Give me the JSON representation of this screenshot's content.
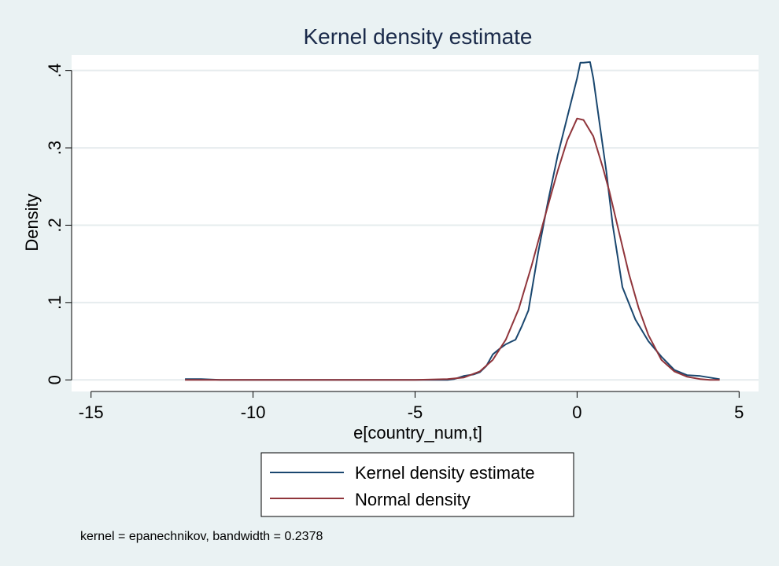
{
  "chart_data": {
    "type": "line",
    "title": "Kernel density estimate",
    "xlabel": "e[country_num,t]",
    "ylabel": "Density",
    "xlim": [
      -15.6,
      5.6
    ],
    "ylim": [
      -0.015,
      0.42
    ],
    "xticks": [
      -15,
      -10,
      -5,
      0,
      5
    ],
    "xtick_labels": [
      "-15",
      "-10",
      "-5",
      "0",
      "5"
    ],
    "yticks": [
      0,
      0.1,
      0.2,
      0.3,
      0.4
    ],
    "ytick_labels": [
      "0",
      ".1",
      ".2",
      ".3",
      ".4"
    ],
    "grid": true,
    "legend_position": "bottom",
    "series": [
      {
        "name": "Kernel density estimate",
        "color": "#1a476f",
        "x": [
          -12.1,
          -11.6,
          -11.0,
          -10.0,
          -8.0,
          -6.0,
          -5.0,
          -4.0,
          -3.8,
          -3.5,
          -3.2,
          -3.0,
          -2.8,
          -2.6,
          -2.4,
          -2.2,
          -2.0,
          -1.9,
          -1.7,
          -1.5,
          -1.2,
          -0.9,
          -0.6,
          -0.3,
          0.0,
          0.1,
          0.2,
          0.4,
          0.5,
          0.7,
          0.9,
          1.1,
          1.4,
          1.8,
          2.2,
          2.6,
          3.0,
          3.4,
          3.8,
          4.1,
          4.4
        ],
        "y": [
          0.001,
          0.001,
          0.0,
          0.0,
          0.0,
          0.0,
          0.0,
          0.0,
          0.001,
          0.005,
          0.007,
          0.01,
          0.018,
          0.033,
          0.04,
          0.046,
          0.05,
          0.052,
          0.07,
          0.09,
          0.165,
          0.23,
          0.29,
          0.34,
          0.39,
          0.41,
          0.41,
          0.411,
          0.39,
          0.33,
          0.27,
          0.2,
          0.12,
          0.078,
          0.05,
          0.03,
          0.013,
          0.006,
          0.005,
          0.003,
          0.001
        ]
      },
      {
        "name": "Normal density",
        "color": "#90353b",
        "x": [
          -12.1,
          -11.0,
          -10.0,
          -8.0,
          -6.0,
          -5.0,
          -4.0,
          -3.5,
          -3.0,
          -2.6,
          -2.2,
          -1.8,
          -1.4,
          -1.0,
          -0.6,
          -0.3,
          0.0,
          0.2,
          0.5,
          0.8,
          1.0,
          1.3,
          1.6,
          1.9,
          2.2,
          2.6,
          3.0,
          3.4,
          3.8,
          4.1,
          4.4
        ],
        "y": [
          0.0,
          0.0,
          0.0,
          0.0,
          0.0,
          0.0,
          0.001,
          0.003,
          0.011,
          0.026,
          0.052,
          0.092,
          0.148,
          0.21,
          0.27,
          0.31,
          0.338,
          0.336,
          0.315,
          0.274,
          0.243,
          0.19,
          0.137,
          0.093,
          0.058,
          0.026,
          0.011,
          0.004,
          0.001,
          0.0,
          0.0
        ]
      }
    ]
  },
  "note": "kernel = epanechnikov, bandwidth = 0.2378"
}
